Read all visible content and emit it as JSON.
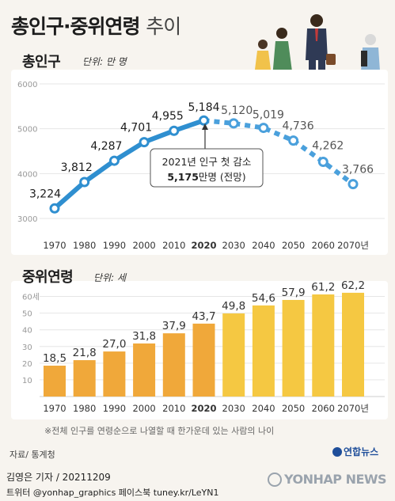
{
  "header": {
    "title_main": "총인구·중위연령",
    "title_sub": "추이"
  },
  "population": {
    "section_title": "총인구",
    "unit_label": "단위: 만 명",
    "callout_line1": "2021년 인구 첫 감소",
    "callout_value": "5,175",
    "callout_rest": "만명 (전망)"
  },
  "median_age": {
    "section_title": "중위연령",
    "unit_label": "단위: 세"
  },
  "footnote": "※전체 인구를 연령순으로 나열할 때 한가운데 있는 사람의 나이",
  "source": "자료/ 통계청",
  "byline": "김영은 기자 / 20211209",
  "social": "트위터 @yonhap_graphics  페이스북 tuney.kr/LeYN1",
  "logo_text": "연합뉴스",
  "watermark": "YONHAP NEWS",
  "colors": {
    "line_actual": "#2f8fd0",
    "line_projected": "#4aa0dc",
    "bar_actual": "#f0a83a",
    "bar_projected": "#f5c842"
  },
  "chart_data": [
    {
      "type": "line",
      "title": "총인구",
      "unit": "단위: 만 명",
      "x": [
        "1970",
        "1980",
        "1990",
        "2000",
        "2010",
        "2020",
        "2030",
        "2040",
        "2050",
        "2060",
        "2070년"
      ],
      "series": [
        {
          "values": [
            3224,
            3812,
            4287,
            4701,
            4955,
            5184,
            null,
            null,
            null,
            null,
            null
          ]
        },
        {
          "values": [
            null,
            null,
            null,
            null,
            null,
            5184,
            5120,
            5019,
            4736,
            4262,
            3766
          ]
        }
      ],
      "value_labels": [
        "3,224",
        "3,812",
        "4,287",
        "4,701",
        "4,955",
        "5,184",
        "5,120",
        "5,019",
        "4,736",
        "4,262",
        "3,766"
      ],
      "y_ticks": [
        "3000",
        "4000",
        "5000",
        "6000"
      ],
      "ylim": [
        3000,
        6000
      ],
      "grid": true
    },
    {
      "type": "bar",
      "title": "중위연령",
      "unit": "단위: 세",
      "categories": [
        "1970",
        "1980",
        "1990",
        "2000",
        "2010",
        "2020",
        "2030",
        "2040",
        "2050",
        "2060",
        "2070년"
      ],
      "values": [
        18.5,
        21.8,
        27.0,
        31.8,
        37.9,
        43.7,
        49.8,
        54.6,
        57.9,
        61.2,
        62.2
      ],
      "value_labels": [
        "18,5",
        "21,8",
        "27,0",
        "31,8",
        "37,9",
        "43,7",
        "49,8",
        "54,6",
        "57,9",
        "61,2",
        "62,2"
      ],
      "y_ticks": [
        "10",
        "20",
        "30",
        "40",
        "50",
        "60세"
      ],
      "ylim": [
        0,
        65
      ],
      "grid": true
    }
  ]
}
